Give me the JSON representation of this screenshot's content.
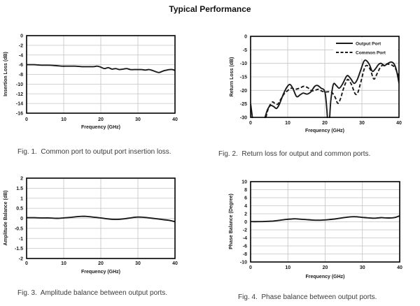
{
  "page_title": "Typical Performance",
  "figures": [
    {
      "caption": "Fig. 1.  Common port to output port insertion loss."
    },
    {
      "caption": "Fig. 2.  Return loss for output and common ports."
    },
    {
      "caption": "Fig. 3.  Amplitude balance between output ports."
    },
    {
      "caption": "Fig. 4.  Phase balance between output ports."
    }
  ],
  "colors": {
    "curve": "#1a1a1a",
    "grid": "#c3c3c3",
    "frame": "#000000"
  },
  "chart_data": [
    {
      "type": "line",
      "title": "Common port to output port insertion loss",
      "xlabel": "Frequency (GHz)",
      "ylabel": "Insertion Loss (dB)",
      "xlim": [
        0,
        40
      ],
      "ylim": [
        -16,
        0
      ],
      "xticks": [
        0,
        10,
        20,
        30,
        40
      ],
      "yticks": [
        0,
        -2,
        -4,
        -6,
        -8,
        -10,
        -12,
        -14,
        -16
      ],
      "grid": true,
      "legend": null,
      "series": [
        {
          "name": "Insertion Loss",
          "style": "solid",
          "color": "#1a1a1a",
          "points": [
            [
              0,
              -6.0
            ],
            [
              2,
              -6.0
            ],
            [
              4,
              -6.1
            ],
            [
              6,
              -6.1
            ],
            [
              8,
              -6.2
            ],
            [
              9.5,
              -6.3
            ],
            [
              11,
              -6.3
            ],
            [
              13,
              -6.3
            ],
            [
              15,
              -6.4
            ],
            [
              16.5,
              -6.4
            ],
            [
              18,
              -6.4
            ],
            [
              19,
              -6.3
            ],
            [
              20,
              -6.5
            ],
            [
              21,
              -6.8
            ],
            [
              22,
              -6.6
            ],
            [
              23,
              -6.9
            ],
            [
              24,
              -6.8
            ],
            [
              25,
              -7.0
            ],
            [
              26,
              -6.9
            ],
            [
              27,
              -6.8
            ],
            [
              28,
              -7.0
            ],
            [
              29,
              -7.0
            ],
            [
              30,
              -7.0
            ],
            [
              31,
              -7.0
            ],
            [
              32,
              -7.1
            ],
            [
              33,
              -7.0
            ],
            [
              34,
              -7.2
            ],
            [
              35,
              -7.5
            ],
            [
              35.8,
              -7.6
            ],
            [
              36.8,
              -7.3
            ],
            [
              37.8,
              -7.1
            ],
            [
              38.6,
              -7.0
            ],
            [
              39.3,
              -7.0
            ],
            [
              40,
              -7.2
            ]
          ]
        }
      ]
    },
    {
      "type": "line",
      "title": "Return loss for output and common ports",
      "xlabel": "Frequency (GHz)",
      "ylabel": "Return Loss (dB)",
      "xlim": [
        0,
        40
      ],
      "ylim": [
        -30,
        0
      ],
      "xticks": [
        0,
        10,
        20,
        30,
        40
      ],
      "yticks": [
        0,
        -5,
        -10,
        -15,
        -20,
        -25,
        -30
      ],
      "grid": true,
      "legend": {
        "position": "top-right"
      },
      "series": [
        {
          "name": "Output Port",
          "style": "solid",
          "color": "#1a1a1a",
          "points": [
            [
              0,
              -25
            ],
            [
              0.4,
              -29
            ],
            [
              0.8,
              -32
            ],
            [
              3.4,
              -32
            ],
            [
              4,
              -29.5
            ],
            [
              4.6,
              -27
            ],
            [
              5.4,
              -25.6
            ],
            [
              6.2,
              -26
            ],
            [
              7,
              -26.7
            ],
            [
              7.8,
              -25
            ],
            [
              8.8,
              -21.5
            ],
            [
              9.8,
              -18.8
            ],
            [
              10.6,
              -17.8
            ],
            [
              11.4,
              -19.3
            ],
            [
              12.4,
              -22.3
            ],
            [
              13.4,
              -21.6
            ],
            [
              14.2,
              -21.0
            ],
            [
              15.2,
              -21.4
            ],
            [
              16.2,
              -20.6
            ],
            [
              17.3,
              -18.5
            ],
            [
              18.1,
              -18.2
            ],
            [
              19,
              -19.2
            ],
            [
              19.8,
              -19.8
            ],
            [
              20.2,
              -22
            ],
            [
              20.6,
              -28
            ],
            [
              20.8,
              -32
            ],
            [
              21.2,
              -32
            ],
            [
              21.6,
              -24
            ],
            [
              22.3,
              -17.8
            ],
            [
              23.1,
              -18.2
            ],
            [
              23.9,
              -19.2
            ],
            [
              24.8,
              -17.6
            ],
            [
              25.8,
              -14.9
            ],
            [
              26.3,
              -14.6
            ],
            [
              27.1,
              -15.9
            ],
            [
              27.9,
              -17.4
            ],
            [
              28.7,
              -16.2
            ],
            [
              29.6,
              -12.8
            ],
            [
              30.5,
              -9.4
            ],
            [
              31.1,
              -8.9
            ],
            [
              32,
              -10.4
            ],
            [
              32.8,
              -12.9
            ],
            [
              33.6,
              -12.1
            ],
            [
              34.5,
              -10.4
            ],
            [
              35.2,
              -10.0
            ],
            [
              36,
              -10.9
            ],
            [
              36.9,
              -10.1
            ],
            [
              37.9,
              -9.5
            ],
            [
              38.7,
              -10.3
            ],
            [
              39.3,
              -12.5
            ],
            [
              40,
              -17.3
            ]
          ]
        },
        {
          "name": "Common Port",
          "style": "dashed",
          "color": "#1a1a1a",
          "points": [
            [
              3.8,
              -32
            ],
            [
              4.4,
              -28.5
            ],
            [
              5,
              -26
            ],
            [
              5.9,
              -24.3
            ],
            [
              6.6,
              -24.9
            ],
            [
              7.3,
              -25.1
            ],
            [
              8.1,
              -23.4
            ],
            [
              9,
              -21.4
            ],
            [
              10,
              -20.1
            ],
            [
              11,
              -19.2
            ],
            [
              12,
              -19.6
            ],
            [
              13.2,
              -19.2
            ],
            [
              14.4,
              -18.5
            ],
            [
              15.5,
              -19.1
            ],
            [
              16.5,
              -20.2
            ],
            [
              17.5,
              -19.9
            ],
            [
              18.3,
              -19.6
            ],
            [
              19.2,
              -20.3
            ],
            [
              20.2,
              -20.6
            ],
            [
              21.2,
              -20.5
            ],
            [
              22,
              -20.9
            ],
            [
              22.8,
              -22.6
            ],
            [
              23.5,
              -24.8
            ],
            [
              24.2,
              -23.2
            ],
            [
              25,
              -19.5
            ],
            [
              25.9,
              -16.4
            ],
            [
              26.4,
              -16.1
            ],
            [
              27.2,
              -17.9
            ],
            [
              28.2,
              -21.3
            ],
            [
              28.9,
              -20.8
            ],
            [
              29.7,
              -17
            ],
            [
              30.7,
              -11.8
            ],
            [
              31.4,
              -10.8
            ],
            [
              32.3,
              -12.4
            ],
            [
              33.2,
              -15.8
            ],
            [
              34.1,
              -13.8
            ],
            [
              35.1,
              -11.2
            ],
            [
              36.1,
              -10.4
            ],
            [
              37.1,
              -10.3
            ],
            [
              38,
              -10.6
            ],
            [
              38.8,
              -11.4
            ],
            [
              39.4,
              -13
            ],
            [
              40,
              -15.4
            ]
          ]
        }
      ]
    },
    {
      "type": "line",
      "title": "Amplitude balance between output ports",
      "xlabel": "Frequency (GHz)",
      "ylabel": "Amplitude Balance  (dB)",
      "xlim": [
        0,
        40
      ],
      "ylim": [
        -2,
        2
      ],
      "xticks": [
        0,
        10,
        20,
        30,
        40
      ],
      "yticks": [
        2,
        1.5,
        1,
        0.5,
        0,
        -0.5,
        -1,
        -1.5,
        -2
      ],
      "grid": true,
      "legend": null,
      "series": [
        {
          "name": "Amplitude Balance",
          "style": "solid",
          "color": "#1a1a1a",
          "points": [
            [
              0,
              0.03
            ],
            [
              2,
              0.03
            ],
            [
              4,
              0.02
            ],
            [
              6,
              0.02
            ],
            [
              8,
              0.0
            ],
            [
              10,
              0.02
            ],
            [
              12,
              0.05
            ],
            [
              14,
              0.09
            ],
            [
              15.5,
              0.1
            ],
            [
              17,
              0.08
            ],
            [
              18.5,
              0.05
            ],
            [
              20,
              0.02
            ],
            [
              21.5,
              -0.02
            ],
            [
              23,
              -0.05
            ],
            [
              25,
              -0.05
            ],
            [
              26.5,
              -0.02
            ],
            [
              28,
              0.02
            ],
            [
              29.5,
              0.06
            ],
            [
              31,
              0.06
            ],
            [
              32.5,
              0.03
            ],
            [
              34,
              0.0
            ],
            [
              35.5,
              -0.03
            ],
            [
              37,
              -0.07
            ],
            [
              38.5,
              -0.1
            ],
            [
              40,
              -0.17
            ]
          ]
        }
      ]
    },
    {
      "type": "line",
      "title": "Phase balance between output ports",
      "xlabel": "Frequency (GHz)",
      "ylabel": "Phase Balance (Degree)",
      "xlim": [
        0,
        40
      ],
      "ylim": [
        -10,
        10
      ],
      "xticks": [
        0,
        10,
        20,
        30,
        40
      ],
      "yticks": [
        10,
        8,
        6,
        4,
        2,
        0,
        -2,
        -4,
        -6,
        -8,
        -10
      ],
      "grid": true,
      "legend": null,
      "series": [
        {
          "name": "Phase Balance",
          "style": "solid",
          "color": "#1a1a1a",
          "points": [
            [
              0,
              0.05
            ],
            [
              2,
              0.05
            ],
            [
              4,
              0.1
            ],
            [
              6,
              0.2
            ],
            [
              8,
              0.4
            ],
            [
              9.5,
              0.6
            ],
            [
              11,
              0.7
            ],
            [
              12,
              0.75
            ],
            [
              13.5,
              0.65
            ],
            [
              15,
              0.55
            ],
            [
              16.5,
              0.45
            ],
            [
              18,
              0.4
            ],
            [
              19.5,
              0.45
            ],
            [
              21,
              0.55
            ],
            [
              22.5,
              0.7
            ],
            [
              24,
              0.9
            ],
            [
              25.5,
              1.1
            ],
            [
              27,
              1.25
            ],
            [
              28.5,
              1.25
            ],
            [
              30,
              1.1
            ],
            [
              31.5,
              1.0
            ],
            [
              33,
              0.9
            ],
            [
              34,
              0.95
            ],
            [
              35,
              1.05
            ],
            [
              36,
              1.0
            ],
            [
              37,
              0.95
            ],
            [
              38,
              1.0
            ],
            [
              39,
              1.15
            ],
            [
              40,
              1.5
            ]
          ]
        }
      ]
    }
  ]
}
